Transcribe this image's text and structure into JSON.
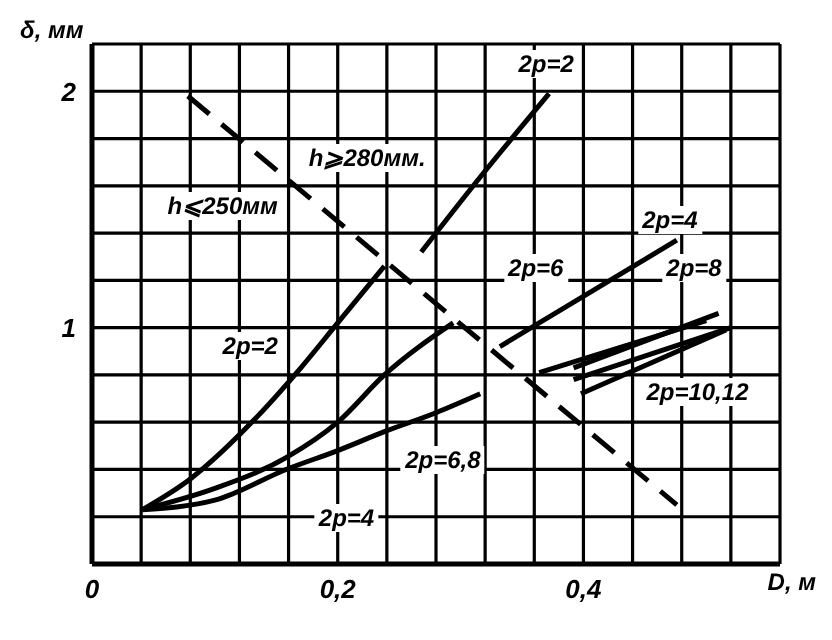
{
  "chart_data": {
    "type": "line",
    "xlabel": "D, м",
    "ylabel": "δ, мм",
    "xlim": [
      0,
      0.56
    ],
    "ylim": [
      0,
      2.2
    ],
    "xticks": [
      0,
      {
        "value": 0.04,
        "label": null
      },
      {
        "value": 0.08,
        "label": null
      },
      {
        "value": 0.12,
        "label": null
      },
      {
        "value": 0.16,
        "label": null
      },
      {
        "value": 0.2,
        "label": "0,2"
      },
      {
        "value": 0.24,
        "label": null
      },
      {
        "value": 0.28,
        "label": null
      },
      {
        "value": 0.32,
        "label": null
      },
      {
        "value": 0.36,
        "label": null
      },
      {
        "value": 0.4,
        "label": "0,4"
      },
      {
        "value": 0.44,
        "label": null
      },
      {
        "value": 0.48,
        "label": null
      },
      {
        "value": 0.52,
        "label": null
      },
      {
        "value": 0.56,
        "label": null
      }
    ],
    "yticks": [
      {
        "value": 0,
        "label": null
      },
      {
        "value": 0.2,
        "label": null
      },
      {
        "value": 0.4,
        "label": null
      },
      {
        "value": 0.6,
        "label": null
      },
      {
        "value": 0.8,
        "label": null
      },
      1,
      {
        "value": 1.2,
        "label": null
      },
      {
        "value": 1.4,
        "label": null
      },
      {
        "value": 1.6,
        "label": null
      },
      {
        "value": 1.8,
        "label": null
      },
      2,
      {
        "value": 2.2,
        "label": null
      }
    ],
    "grid": true,
    "marker": "none",
    "series": [
      {
        "color": "#000000",
        "line_style": "solid",
        "x": [
          0.041,
          0.08,
          0.132,
          0.17,
          0.2,
          0.238
        ],
        "values": [
          0.23,
          0.36,
          0.61,
          0.83,
          1.02,
          1.26
        ]
      },
      {
        "color": "#000000",
        "line_style": "solid",
        "x": [
          0.268,
          0.318,
          0.372
        ],
        "values": [
          1.32,
          1.65,
          1.99
        ]
      },
      {
        "color": "#000000",
        "line_style": "solid",
        "x": [
          0.041,
          0.1,
          0.158,
          0.2,
          0.238,
          0.294
        ],
        "values": [
          0.23,
          0.32,
          0.45,
          0.6,
          0.8,
          1.02
        ]
      },
      {
        "color": "#000000",
        "line_style": "solid",
        "x": [
          0.041,
          0.1,
          0.158,
          0.2,
          0.238,
          0.28,
          0.316
        ],
        "values": [
          0.23,
          0.27,
          0.4,
          0.48,
          0.56,
          0.64,
          0.72
        ]
      },
      {
        "color": "#000000",
        "line_style": "solid",
        "x": [
          0.332,
          0.476
        ],
        "values": [
          0.92,
          1.37
        ]
      },
      {
        "color": "#000000",
        "line_style": "solid",
        "x": [
          0.364,
          0.5
        ],
        "values": [
          0.81,
          1.03
        ]
      },
      {
        "color": "#000000",
        "line_style": "solid",
        "x": [
          0.392,
          0.51
        ],
        "values": [
          0.83,
          1.06
        ]
      },
      {
        "color": "#000000",
        "line_style": "solid",
        "x": [
          0.392,
          0.52
        ],
        "values": [
          0.78,
          1.0
        ]
      },
      {
        "color": "#000000",
        "line_style": "solid",
        "x": [
          0.398,
          0.516
        ],
        "values": [
          0.72,
          0.99
        ]
      },
      {
        "color": "#000000",
        "line_style": "dashed",
        "x": [
          0.078,
          0.476
        ],
        "values": [
          1.98,
          0.25
        ]
      }
    ],
    "annotations": [
      "2p=2",
      "h⩾280мм.",
      "h⩽250мм",
      "2p=4",
      "2p=6",
      "2p=8",
      "2p=2",
      "2p=10,12",
      "2p=6,8",
      "2p=4"
    ]
  }
}
